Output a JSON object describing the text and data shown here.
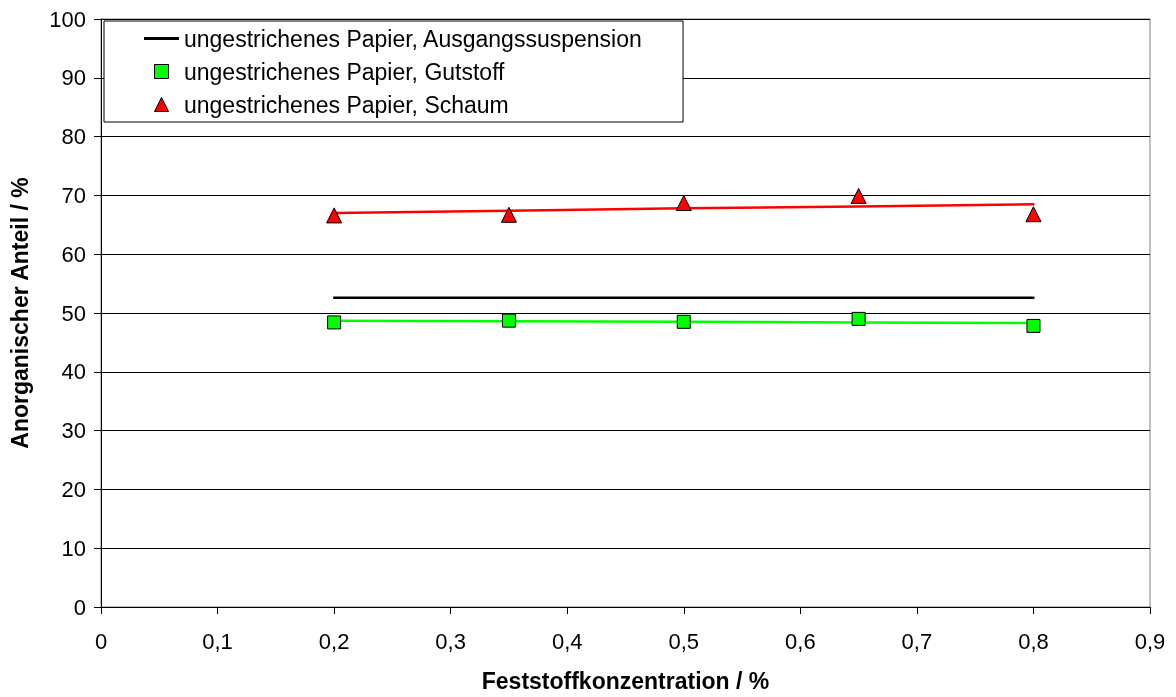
{
  "chart_data": {
    "type": "scatter",
    "xlabel": "Feststoffkonzentration / %",
    "ylabel": "Anorganischer Anteil / %",
    "x": [
      0.2,
      0.35,
      0.5,
      0.65,
      0.8
    ],
    "series": [
      {
        "name": "ungestrichenes Papier, Ausgangssuspension",
        "type": "line",
        "color": "#000000",
        "line_style": "solid",
        "values": [
          52.6,
          52.6,
          52.6,
          52.6,
          52.6
        ]
      },
      {
        "name": "ungestrichenes Papier, Gutstoff",
        "color": "#00ff00",
        "marker": "square",
        "values": [
          48.4,
          48.7,
          48.5,
          49.0,
          47.8
        ]
      },
      {
        "name": "ungestrichenes Papier, Schaum",
        "color": "#ff0000",
        "marker": "triangle",
        "values": [
          66.6,
          66.7,
          68.7,
          69.9,
          66.8
        ]
      },
      {
        "type": "line",
        "color": "#00ff00",
        "line_style": "solid",
        "values": [
          48.7,
          48.6,
          48.5,
          48.4,
          48.3
        ]
      },
      {
        "type": "line",
        "color": "#ff0000",
        "line_style": "solid",
        "values": [
          67.0,
          67.4,
          67.8,
          68.1,
          68.5
        ]
      }
    ],
    "xlim": [
      0,
      0.9
    ],
    "xticks": [
      0,
      {
        "value": 0.1,
        "label": "0,1"
      },
      {
        "value": 0.2,
        "label": "0,2"
      },
      {
        "value": 0.3,
        "label": "0,3"
      },
      {
        "value": 0.4,
        "label": "0,4"
      },
      {
        "value": 0.5,
        "label": "0,5"
      },
      {
        "value": 0.6,
        "label": "0,6"
      },
      {
        "value": 0.7,
        "label": "0,7"
      },
      {
        "value": 0.8,
        "label": "0,8"
      },
      {
        "value": 0.9,
        "label": "0,9"
      }
    ],
    "ylim": [
      0,
      100
    ],
    "yticks": [
      0,
      10,
      20,
      30,
      40,
      50,
      60,
      70,
      80,
      90,
      100
    ],
    "grid": "y",
    "legend": "top left"
  }
}
